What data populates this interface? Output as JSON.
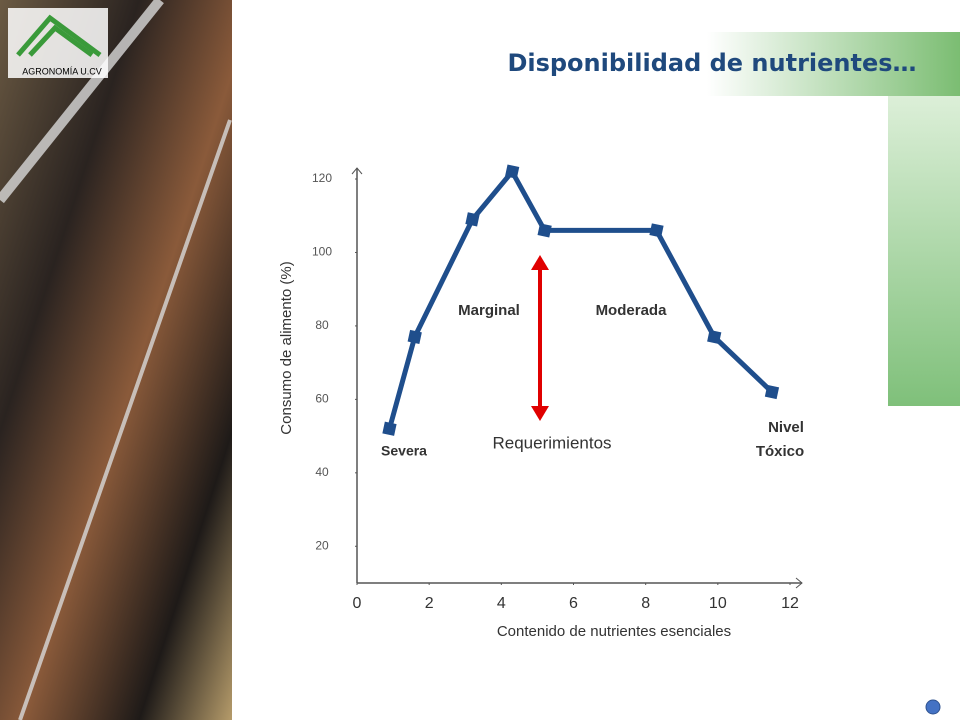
{
  "header": {
    "title": "Disponibilidad de nutrientes…",
    "logo_text": "AGRONOMÍA U.CV"
  },
  "chart_data": {
    "type": "line",
    "x_label": "Contenido de nutrientes esenciales",
    "y_label": "Consumo de alimento (%)",
    "x": [
      0.9,
      1.6,
      3.2,
      4.3,
      5.2,
      8.3,
      9.9,
      11.5
    ],
    "series": [
      {
        "color": "#1f4e8c",
        "values": [
          52,
          77,
          109,
          122,
          106,
          106,
          77,
          62
        ]
      }
    ],
    "xlim": [
      0,
      12
    ],
    "xticks": [
      0,
      2,
      4,
      6,
      8,
      10,
      12
    ],
    "ylim": [
      10,
      123
    ],
    "yticks": [
      20,
      40,
      60,
      80,
      100,
      120
    ],
    "annotations": [
      "Severa",
      "Marginal",
      "Moderada",
      "Nivel",
      "Tóxico",
      "Requerimientos"
    ]
  }
}
